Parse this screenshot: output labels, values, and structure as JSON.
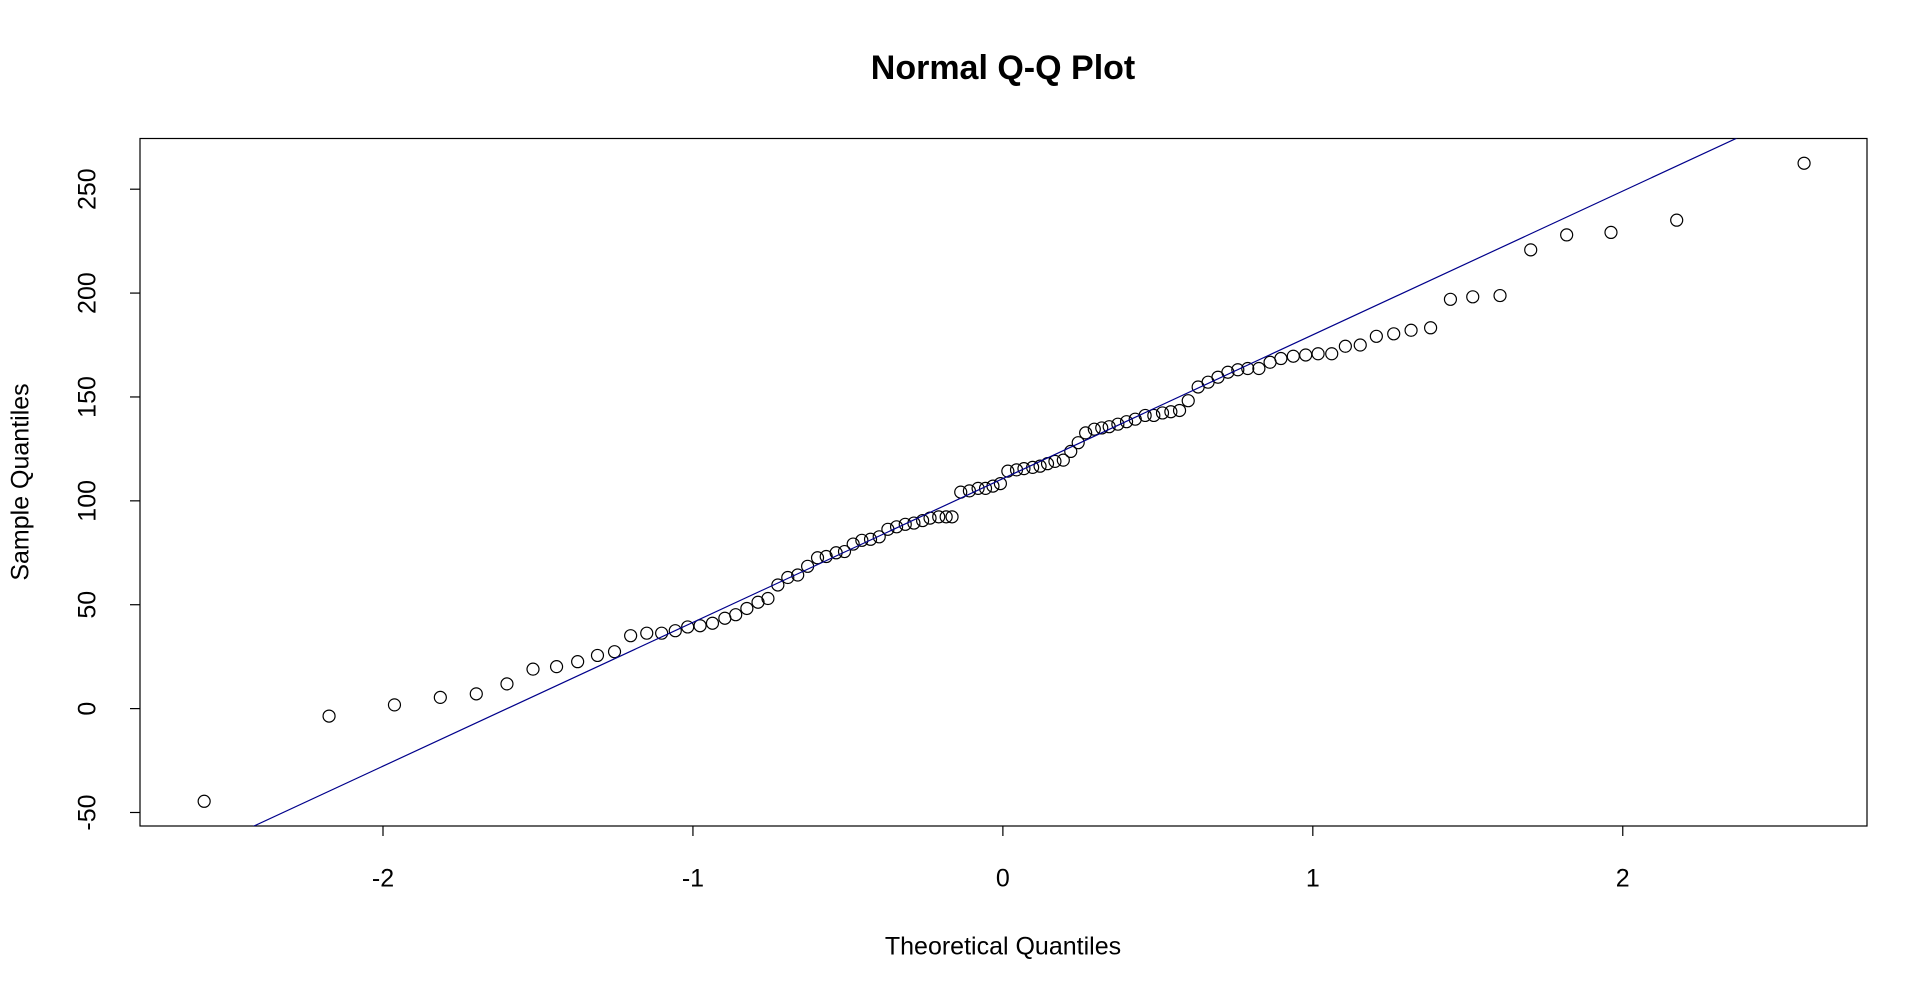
{
  "chart_data": {
    "type": "scatter",
    "title": "Normal Q-Q Plot",
    "x_label": "Theoretical Quantiles",
    "y_label": "Sample Quantiles",
    "xlim": [
      -2.784,
      2.788
    ],
    "ylim": [
      -56.5,
      274.4
    ],
    "xticks": [
      -2,
      -1,
      0,
      1,
      2
    ],
    "yticks": [
      -50,
      0,
      50,
      100,
      150,
      200,
      250
    ],
    "series": [
      {
        "color": "#000000",
        "x": [
          -2.577,
          -2.174,
          -1.963,
          -1.815,
          -1.699,
          -1.6,
          -1.516,
          -1.44,
          -1.372,
          -1.308,
          -1.253,
          -1.201,
          -1.149,
          -1.101,
          -1.057,
          -1.017,
          -0.977,
          -0.937,
          -0.897,
          -0.862,
          -0.826,
          -0.79,
          -0.758,
          -0.726,
          -0.694,
          -0.662,
          -0.63,
          -0.598,
          -0.57,
          -0.538,
          -0.511,
          -0.483,
          -0.455,
          -0.427,
          -0.399,
          -0.371,
          -0.343,
          -0.315,
          -0.287,
          -0.259,
          -0.235,
          -0.207,
          -0.183,
          -0.164,
          -0.136,
          -0.108,
          -0.08,
          -0.056,
          -0.032,
          -0.008,
          0.016,
          0.044,
          0.068,
          0.096,
          0.12,
          0.144,
          0.168,
          0.195,
          0.219,
          0.243,
          0.267,
          0.295,
          0.319,
          0.343,
          0.371,
          0.399,
          0.427,
          0.459,
          0.487,
          0.515,
          0.542,
          0.57,
          0.598,
          0.63,
          0.662,
          0.694,
          0.726,
          0.758,
          0.79,
          0.826,
          0.862,
          0.897,
          0.937,
          0.977,
          1.017,
          1.061,
          1.105,
          1.153,
          1.205,
          1.261,
          1.317,
          1.38,
          1.444,
          1.516,
          1.604,
          1.703,
          1.819,
          1.962,
          2.174,
          2.585
        ],
        "values": [
          -44.6,
          -3.6,
          1.8,
          5.4,
          7.1,
          11.9,
          19.0,
          20.2,
          22.6,
          25.6,
          27.4,
          35.1,
          36.3,
          36.3,
          37.5,
          39.3,
          39.9,
          41.1,
          43.5,
          45.2,
          48.2,
          51.2,
          53.0,
          59.5,
          63.1,
          64.3,
          68.5,
          72.6,
          73.2,
          75.0,
          75.6,
          79.2,
          81.0,
          81.5,
          82.7,
          86.3,
          87.5,
          88.7,
          89.3,
          90.5,
          91.7,
          92.3,
          92.3,
          92.3,
          104.2,
          104.8,
          106.0,
          106.0,
          107.1,
          108.3,
          114.3,
          114.9,
          115.5,
          116.1,
          116.7,
          117.9,
          119.0,
          119.6,
          123.8,
          128.0,
          132.7,
          134.5,
          135.1,
          135.7,
          136.9,
          138.1,
          139.3,
          141.1,
          141.1,
          142.3,
          142.9,
          143.5,
          148.2,
          154.8,
          157.1,
          159.5,
          161.9,
          163.1,
          163.7,
          163.7,
          166.7,
          168.5,
          169.6,
          170.2,
          170.8,
          170.8,
          174.4,
          175.0,
          179.2,
          180.4,
          182.1,
          183.3,
          197.0,
          198.2,
          198.8,
          220.8,
          228.0,
          229.2,
          235.1,
          262.5
        ]
      }
    ],
    "reference_line": {
      "intercept": 110.7,
      "slope": 69.2,
      "color": "#00008b"
    }
  }
}
